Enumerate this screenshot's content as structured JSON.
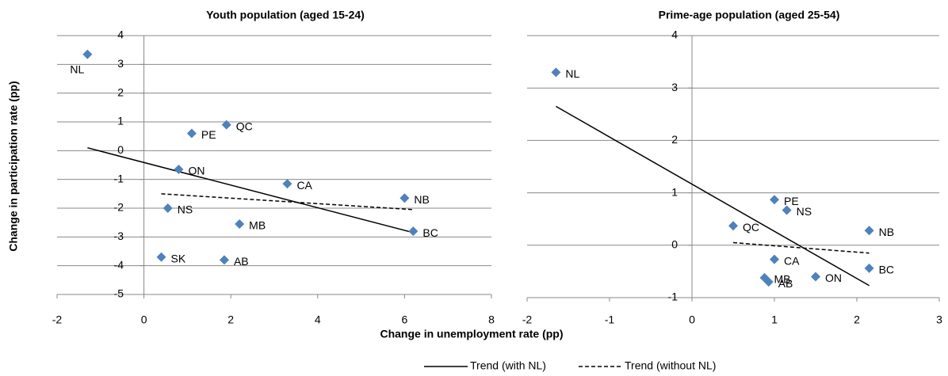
{
  "chart_data": [
    {
      "type": "scatter",
      "title": "Youth population (aged 15-24)",
      "x_label": "Change in unemployment rate (pp)",
      "y_label": "Change in participation rate (pp)",
      "xlim": [
        -2,
        8
      ],
      "xticks": [
        -2,
        0,
        2,
        4,
        6,
        8
      ],
      "ylim": [
        -5,
        4
      ],
      "yticks": [
        -5,
        -4,
        -3,
        -2,
        -1,
        0,
        1,
        2,
        3,
        4
      ],
      "grid": true,
      "points": {
        "color": "#4f81bd",
        "labels": [
          "NL",
          "PE",
          "QC",
          "ON",
          "CA",
          "NS",
          "NB",
          "MB",
          "BC",
          "SK",
          "AB"
        ],
        "x": [
          -1.3,
          1.1,
          1.9,
          0.8,
          3.3,
          0.55,
          6.0,
          2.2,
          6.2,
          0.4,
          1.85
        ],
        "values": [
          3.35,
          0.6,
          0.9,
          -0.65,
          -1.15,
          -2.0,
          -1.65,
          -2.55,
          -2.8,
          -3.7,
          -3.8
        ]
      },
      "series": [
        {
          "name": "Trend (with NL)",
          "color": "#000000",
          "style": "solid",
          "x": [
            -1.3,
            6.2
          ],
          "values": [
            0.1,
            -2.85
          ]
        },
        {
          "name": "Trend (without NL)",
          "color": "#000000",
          "style": "dashed",
          "x": [
            0.4,
            6.2
          ],
          "values": [
            -1.5,
            -2.05
          ]
        }
      ]
    },
    {
      "type": "scatter",
      "title": "Prime-age population (aged 25-54)",
      "xlim": [
        -2,
        3
      ],
      "xticks": [
        -2,
        -1,
        0,
        1,
        2,
        3
      ],
      "ylim": [
        -1,
        4
      ],
      "yticks": [
        -1,
        0,
        1,
        2,
        3,
        4
      ],
      "grid": true,
      "points": {
        "color": "#4f81bd",
        "labels": [
          "NL",
          "PE",
          "NS",
          "QC",
          "NB",
          "CA",
          "BC",
          "MB",
          "AB",
          "ON"
        ],
        "x": [
          -1.65,
          1.0,
          1.15,
          0.5,
          2.15,
          1.0,
          2.15,
          0.88,
          0.93,
          1.5
        ],
        "values": [
          3.3,
          0.87,
          0.67,
          0.37,
          0.28,
          -0.27,
          -0.44,
          -0.62,
          -0.7,
          -0.6
        ]
      },
      "series": [
        {
          "color": "#000000",
          "style": "solid",
          "x": [
            -1.65,
            2.15
          ],
          "values": [
            2.65,
            -0.77
          ]
        },
        {
          "color": "#000000",
          "style": "dashed",
          "x": [
            0.5,
            2.15
          ],
          "values": [
            0.05,
            -0.15
          ]
        }
      ]
    }
  ]
}
